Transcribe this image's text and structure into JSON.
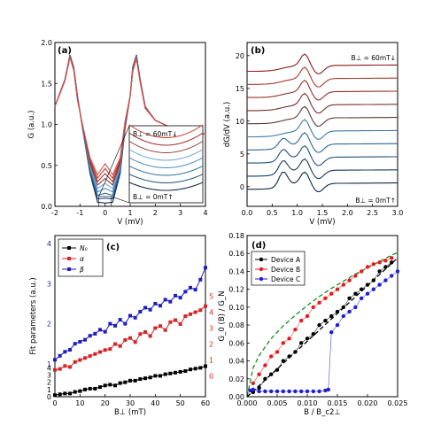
{
  "chart_data": [
    {
      "panel": "(a)",
      "type": "line",
      "xlabel": "V (mV)",
      "ylabel": "G (a.u.)",
      "xlim": [
        -2,
        4
      ],
      "ylim": [
        0,
        2.0
      ],
      "xticks": [
        -2,
        -1,
        0,
        1,
        2,
        3,
        4
      ],
      "yticks": [
        0.0,
        0.5,
        1.0,
        1.5,
        2.0
      ],
      "inset_labels": [
        "B⊥ = 60mT↓",
        "B⊥ = 0mT↑"
      ],
      "series": [
        {
          "x": [
            -2,
            -1.6,
            -1.4,
            -1.25,
            -1.1,
            -0.9,
            -0.6,
            -0.3,
            0,
            0.3,
            0.6,
            0.8,
            1,
            1.1,
            1.25,
            1.4,
            1.6,
            2,
            2.5,
            3,
            4
          ],
          "values": [
            1.22,
            1.55,
            1.85,
            1.7,
            1.35,
            0.95,
            0.4,
            0.05,
            0.04,
            0.05,
            0.4,
            0.95,
            1.35,
            1.7,
            1.85,
            1.55,
            1.22,
            1.05,
            0.98,
            0.93,
            0.88
          ]
        }
      ]
    },
    {
      "panel": "(b)",
      "type": "line",
      "xlabel": "V (mV)",
      "ylabel": "dG/dV (a.u.)",
      "xlim": [
        0.0,
        3.0
      ],
      "ylim": [
        -3,
        22
      ],
      "xticks": [
        0.0,
        0.5,
        1.0,
        1.5,
        2.0,
        2.5,
        3.0
      ],
      "yticks": [
        0,
        5,
        10,
        15,
        20
      ],
      "annotations": [
        "B⊥ = 60mT↓",
        "B⊥ = 0mT↑"
      ],
      "traces": 10,
      "trace_offset": 2
    },
    {
      "panel": "(c)",
      "type": "line",
      "xlabel": "B⊥ (mT)",
      "ylabel": "Fit parameters (a.u.)",
      "xlim": [
        0,
        60
      ],
      "xticks": [
        0,
        10,
        20,
        30,
        40,
        50,
        60
      ],
      "left_ticks_blue": [
        1,
        2,
        3,
        4
      ],
      "left_ticks_black": [
        0,
        1,
        2,
        3,
        4
      ],
      "right_ticks_red": [
        0,
        1,
        2,
        3,
        4,
        5
      ],
      "legend": [
        "N₀",
        "α",
        "β"
      ],
      "series": [
        {
          "name": "N₀",
          "color": "#000000",
          "x": [
            0,
            2,
            4,
            6,
            8,
            10,
            12,
            14,
            16,
            18,
            20,
            22,
            24,
            26,
            28,
            30,
            32,
            34,
            36,
            38,
            40,
            42,
            44,
            46,
            48,
            50,
            52,
            54,
            56,
            58,
            60
          ],
          "values": [
            0.1,
            0.15,
            0.2,
            0.2,
            0.3,
            0.35,
            0.45,
            0.5,
            0.5,
            0.6,
            0.7,
            0.75,
            0.7,
            0.85,
            0.9,
            1.0,
            1.0,
            1.1,
            1.15,
            1.2,
            1.3,
            1.3,
            1.4,
            1.45,
            1.5,
            1.55,
            1.6,
            1.7,
            1.75,
            1.8,
            1.9
          ]
        },
        {
          "name": "α",
          "color": "#d62728",
          "x": [
            0,
            2,
            4,
            6,
            8,
            10,
            12,
            14,
            16,
            18,
            20,
            22,
            24,
            26,
            28,
            30,
            32,
            34,
            36,
            38,
            40,
            42,
            44,
            46,
            48,
            50,
            52,
            54,
            56,
            58,
            60
          ],
          "values": [
            0.3,
            0.35,
            0.5,
            0.45,
            0.7,
            0.8,
            0.9,
            1.0,
            1.1,
            1.2,
            1.3,
            1.35,
            1.6,
            1.5,
            1.8,
            1.9,
            1.7,
            2.1,
            2.2,
            2.0,
            2.4,
            2.5,
            2.3,
            2.7,
            2.8,
            2.6,
            3.0,
            3.1,
            3.2,
            3.3,
            3.5
          ]
        },
        {
          "name": "β",
          "color": "#1f1fbf",
          "x": [
            0,
            2,
            4,
            6,
            8,
            10,
            12,
            14,
            16,
            18,
            20,
            22,
            24,
            26,
            28,
            30,
            32,
            34,
            36,
            38,
            40,
            42,
            44,
            46,
            48,
            50,
            52,
            54,
            56,
            58,
            60
          ],
          "values": [
            1.1,
            1.2,
            1.3,
            1.35,
            1.5,
            1.55,
            1.6,
            1.7,
            1.75,
            1.85,
            1.8,
            2.0,
            1.95,
            2.1,
            2.0,
            2.2,
            2.15,
            2.3,
            2.4,
            2.35,
            2.5,
            2.45,
            2.6,
            2.55,
            2.7,
            2.65,
            2.8,
            2.9,
            2.85,
            3.1,
            3.4
          ]
        }
      ]
    },
    {
      "panel": "(d)",
      "type": "scatter",
      "xlabel": "B / B_c2⊥",
      "ylabel": "G_0 (B) / G_N",
      "xlim": [
        0.0,
        0.025
      ],
      "ylim": [
        0.0,
        0.18
      ],
      "xticks": [
        "0.000",
        "0.005",
        "0.010",
        "0.015",
        "0.020",
        "0.025"
      ],
      "yticks": [
        "0.00",
        "0.02",
        "0.04",
        "0.06",
        "0.08",
        "0.10",
        "0.12",
        "0.14",
        "0.16",
        "0.18"
      ],
      "legend": [
        "Device A",
        "Device B",
        "Device C"
      ],
      "series": [
        {
          "name": "Device A",
          "color": "#000000",
          "x": [
            0.001,
            0.002,
            0.003,
            0.004,
            0.005,
            0.006,
            0.007,
            0.008,
            0.009,
            0.01,
            0.011,
            0.012,
            0.013,
            0.014,
            0.015,
            0.016,
            0.017,
            0.018,
            0.019,
            0.02,
            0.021,
            0.022,
            0.023,
            0.024
          ],
          "values": [
            0.005,
            0.01,
            0.02,
            0.025,
            0.03,
            0.04,
            0.045,
            0.05,
            0.06,
            0.065,
            0.07,
            0.08,
            0.085,
            0.09,
            0.095,
            0.1,
            0.11,
            0.115,
            0.12,
            0.125,
            0.13,
            0.14,
            0.145,
            0.15
          ]
        },
        {
          "name": "Device B",
          "color": "#e41a1c",
          "x": [
            0.001,
            0.002,
            0.003,
            0.004,
            0.005,
            0.006,
            0.007,
            0.008,
            0.009,
            0.01,
            0.011,
            0.012,
            0.013,
            0.014,
            0.015,
            0.016,
            0.017,
            0.018,
            0.019,
            0.02,
            0.021,
            0.022,
            0.023,
            0.024
          ],
          "values": [
            0.015,
            0.025,
            0.035,
            0.045,
            0.05,
            0.06,
            0.065,
            0.075,
            0.085,
            0.09,
            0.1,
            0.105,
            0.11,
            0.115,
            0.12,
            0.125,
            0.13,
            0.135,
            0.14,
            0.145,
            0.148,
            0.15,
            0.152,
            0.155
          ]
        },
        {
          "name": "Device C",
          "color": "#1f1fd0",
          "x": [
            0.0005,
            0.001,
            0.002,
            0.003,
            0.004,
            0.005,
            0.006,
            0.007,
            0.008,
            0.009,
            0.01,
            0.011,
            0.012,
            0.013,
            0.0135,
            0.014,
            0.015,
            0.016,
            0.017,
            0.018,
            0.019,
            0.02,
            0.021,
            0.022,
            0.023,
            0.024,
            0.025
          ],
          "values": [
            0.007,
            0.008,
            0.006,
            0.006,
            0.006,
            0.006,
            0.006,
            0.006,
            0.006,
            0.006,
            0.006,
            0.006,
            0.006,
            0.007,
            0.008,
            0.072,
            0.08,
            0.09,
            0.095,
            0.1,
            0.11,
            0.115,
            0.12,
            0.125,
            0.13,
            0.135,
            0.14
          ]
        }
      ],
      "guides": [
        {
          "style": "green-dashed",
          "x": [
            0,
            0.001,
            0.002,
            0.004,
            0.006,
            0.008,
            0.01,
            0.012,
            0.014,
            0.016,
            0.018,
            0.02,
            0.022,
            0.024,
            0.025
          ],
          "values": [
            0,
            0.032,
            0.046,
            0.065,
            0.079,
            0.091,
            0.102,
            0.112,
            0.121,
            0.129,
            0.137,
            0.144,
            0.151,
            0.158,
            0.161
          ]
        },
        {
          "style": "black-dashed",
          "x": [
            0,
            0.025
          ],
          "values": [
            0,
            0.155
          ]
        }
      ]
    }
  ]
}
